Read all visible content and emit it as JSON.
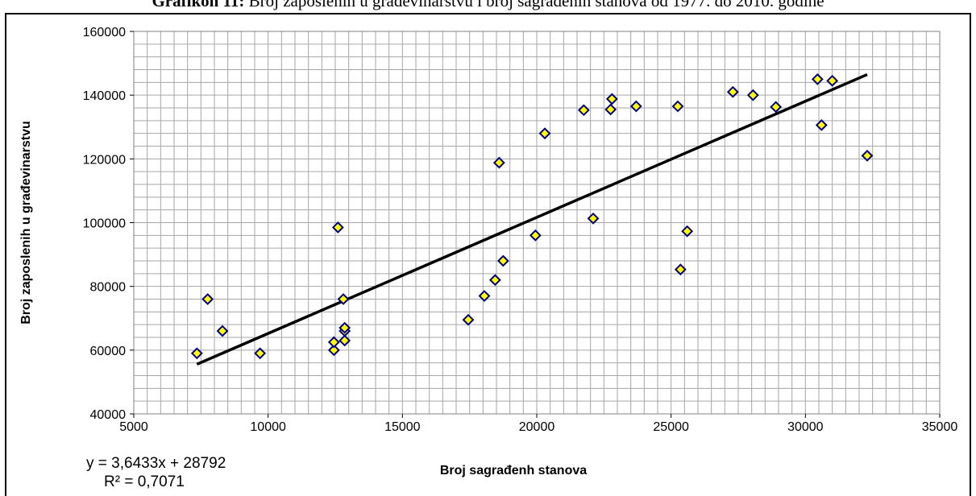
{
  "header": {
    "title_label": "Grafikon 11:",
    "title_text": "Broj zaposlenih u građevinarstvu i broj sagrađenih stanova od 1977. do 2010. godine"
  },
  "colors": {
    "marker_fill": "#ffff00",
    "marker_stroke": "#000080",
    "trendline": "#000000",
    "grid": "#a6a6a6"
  },
  "chart_data": {
    "type": "scatter",
    "title": "Grafikon 11: Broj zaposlenih u građevinarstvu i broj sagrađenih stanova od 1977. do 2010. godine",
    "xlabel": "Broj sagrađenh  stanova",
    "ylabel": "Broj zaposlenih  u građevinarstvu",
    "xlim": [
      5000,
      35000
    ],
    "ylim": [
      40000,
      160000
    ],
    "x_ticks": [
      5000,
      10000,
      15000,
      20000,
      25000,
      30000,
      35000
    ],
    "y_ticks": [
      40000,
      60000,
      80000,
      100000,
      120000,
      140000,
      160000
    ],
    "grid": true,
    "marker": "diamond",
    "points": [
      [
        7350,
        59000
      ],
      [
        7750,
        76000
      ],
      [
        8300,
        66000
      ],
      [
        9700,
        59000
      ],
      [
        12450,
        60000
      ],
      [
        12450,
        62500
      ],
      [
        12600,
        98500
      ],
      [
        12800,
        76000
      ],
      [
        12850,
        66000
      ],
      [
        12850,
        67000
      ],
      [
        12850,
        63000
      ],
      [
        17450,
        69500
      ],
      [
        18050,
        77000
      ],
      [
        18450,
        82000
      ],
      [
        18600,
        118800
      ],
      [
        18750,
        88000
      ],
      [
        19950,
        96000
      ],
      [
        20300,
        128000
      ],
      [
        21750,
        135300
      ],
      [
        22100,
        101300
      ],
      [
        22750,
        135500
      ],
      [
        22800,
        138800
      ],
      [
        23700,
        136500
      ],
      [
        25250,
        136500
      ],
      [
        25350,
        85300
      ],
      [
        25600,
        97300
      ],
      [
        27300,
        141000
      ],
      [
        28050,
        140000
      ],
      [
        28900,
        136300
      ],
      [
        30450,
        145000
      ],
      [
        30600,
        130600
      ],
      [
        31000,
        144500
      ],
      [
        32300,
        121000
      ]
    ],
    "trendline": {
      "type": "linear",
      "slope": 3.6433,
      "intercept": 28792,
      "x_range": [
        7350,
        32300
      ],
      "equation_text": "y = 3,6433x + 28792",
      "r2_text": "R² = 0,7071"
    }
  }
}
